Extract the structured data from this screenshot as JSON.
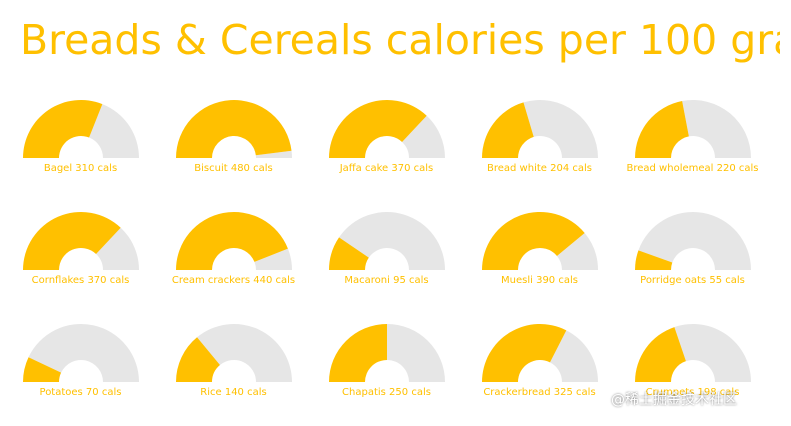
{
  "title": "Breads & Cereals calories per 100 gra",
  "watermark": "@稀土掘金技术社区",
  "colors": {
    "value": "#FFC000",
    "remainder": "#E6E6E6",
    "text": "#FFC000"
  },
  "chart_data": {
    "type": "gauge",
    "title": "Breads & Cereals calories per 100 gra",
    "max": 500,
    "unit": "cals",
    "items": [
      {
        "name": "Bagel",
        "value": 310,
        "label": "Bagel 310 cals"
      },
      {
        "name": "Biscuit",
        "value": 480,
        "label": "Biscuit 480 cals"
      },
      {
        "name": "Jaffa cake",
        "value": 370,
        "label": "Jaffa cake 370 cals"
      },
      {
        "name": "Bread white",
        "value": 204,
        "label": "Bread white 204 cals"
      },
      {
        "name": "Bread wholemeal",
        "value": 220,
        "label": "Bread wholemeal 220 cals"
      },
      {
        "name": "Cornflakes",
        "value": 370,
        "label": "Cornflakes 370 cals"
      },
      {
        "name": "Cream crackers",
        "value": 440,
        "label": "Cream crackers 440 cals"
      },
      {
        "name": "Macaroni",
        "value": 95,
        "label": "Macaroni 95 cals"
      },
      {
        "name": "Muesli",
        "value": 390,
        "label": "Muesli 390 cals"
      },
      {
        "name": "Porridge oats",
        "value": 55,
        "label": "Porridge oats 55 cals"
      },
      {
        "name": "Potatoes",
        "value": 70,
        "label": "Potatoes 70 cals"
      },
      {
        "name": "Rice",
        "value": 140,
        "label": "Rice 140 cals"
      },
      {
        "name": "Chapatis",
        "value": 250,
        "label": "Chapatis 250 cals"
      },
      {
        "name": "Crackerbread",
        "value": 325,
        "label": "Crackerbread 325 cals"
      },
      {
        "name": "Crumpets",
        "value": 198,
        "label": "Crumpets 198 cals"
      }
    ]
  }
}
